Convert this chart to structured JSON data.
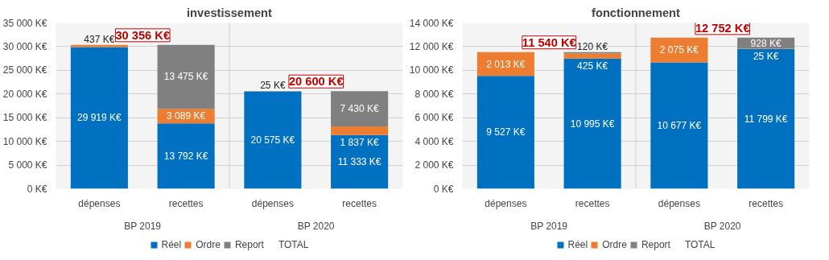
{
  "chart_data": [
    {
      "type": "bar",
      "title": "investissement",
      "stacked": true,
      "categories": [
        "dépenses",
        "recettes",
        "dépenses",
        "recettes"
      ],
      "series": [
        {
          "name": "Réel",
          "color": "#0070c0",
          "values": [
            29919,
            13792,
            20575,
            11333
          ],
          "value_labels": [
            "29 919 K€",
            "13 792 K€",
            "20 575 K€",
            "11 333 K€"
          ]
        },
        {
          "name": "Ordre",
          "color": "#ed7d31",
          "values": [
            437,
            3089,
            25,
            1837
          ],
          "value_labels": [
            "437 K€",
            "3 089 K€",
            "25 K€",
            "1 837 K€"
          ]
        },
        {
          "name": "Report",
          "color": "#808080",
          "values": [
            null,
            13475,
            null,
            7430
          ],
          "value_labels": [
            null,
            "13 475 K€",
            null,
            "7 430 K€"
          ]
        },
        {
          "name": "TOTAL",
          "values": [
            null,
            null,
            null,
            null
          ]
        }
      ],
      "totals": [
        "30 356 K€",
        null,
        "20 600 K€",
        null
      ],
      "annotations": [
        "BP 2019",
        "BP 2020"
      ],
      "ylim": [
        0,
        35000
      ],
      "yticks": [
        {
          "value": 0,
          "label": "0 K€"
        },
        {
          "value": 5000,
          "label": "5 000 K€"
        },
        {
          "value": 10000,
          "label": "10 000 K€"
        },
        {
          "value": 15000,
          "label": "15 000 K€"
        },
        {
          "value": 20000,
          "label": "20 000 K€"
        },
        {
          "value": 25000,
          "label": "25 000 K€"
        },
        {
          "value": 30000,
          "label": "30 000 K€"
        },
        {
          "value": 35000,
          "label": "35 000 K€"
        }
      ],
      "grid": "y",
      "legend": "bottom"
    },
    {
      "type": "bar",
      "title": "fonctionnement",
      "stacked": true,
      "categories": [
        "dépenses",
        "recettes",
        "dépenses",
        "recettes"
      ],
      "series": [
        {
          "name": "Réel",
          "color": "#0070c0",
          "values": [
            9527,
            10995,
            10677,
            11799
          ],
          "value_labels": [
            "9 527 K€",
            "10 995 K€",
            "10 677 K€",
            "11 799 K€"
          ]
        },
        {
          "name": "Ordre",
          "color": "#ed7d31",
          "values": [
            2013,
            425,
            2075,
            25
          ],
          "value_labels": [
            "2 013 K€",
            "425 K€",
            "2 075 K€",
            "25 K€"
          ]
        },
        {
          "name": "Report",
          "color": "#808080",
          "values": [
            null,
            120,
            null,
            928
          ],
          "value_labels": [
            null,
            "120 K€",
            null,
            "928 K€"
          ]
        },
        {
          "name": "TOTAL",
          "values": [
            null,
            null,
            null,
            null
          ]
        }
      ],
      "totals": [
        "11 540 K€",
        null,
        "12 752 K€",
        null
      ],
      "annotations": [
        "BP 2019",
        "BP 2020"
      ],
      "ylim": [
        0,
        14000
      ],
      "yticks": [
        {
          "value": 0,
          "label": "0 K€"
        },
        {
          "value": 2000,
          "label": "2 000 K€"
        },
        {
          "value": 4000,
          "label": "4 000 K€"
        },
        {
          "value": 6000,
          "label": "6 000 K€"
        },
        {
          "value": 8000,
          "label": "8 000 K€"
        },
        {
          "value": 10000,
          "label": "10 000 K€"
        },
        {
          "value": 12000,
          "label": "12 000 K€"
        },
        {
          "value": 14000,
          "label": "14 000 K€"
        }
      ],
      "grid": "y",
      "legend": "bottom"
    }
  ]
}
